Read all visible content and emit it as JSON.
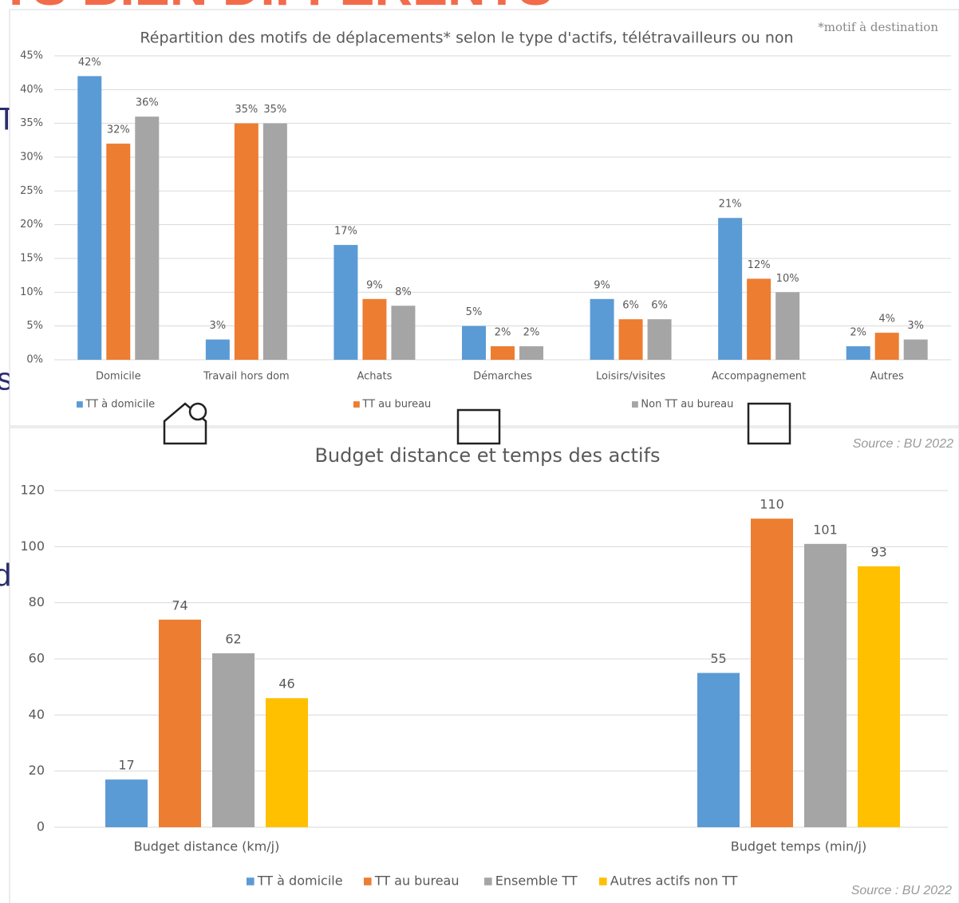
{
  "background": {
    "heading": "TS BIEN DIFFERENTS",
    "fragments": [
      "T",
      "s",
      "d"
    ]
  },
  "chart_data": [
    {
      "type": "bar",
      "title": "Répartition des motifs de déplacements* selon le type d'actifs, télétravailleurs ou non",
      "note": "*motif à destination",
      "source": "Source : BU 2022",
      "categories": [
        "Domicile",
        "Travail hors dom",
        "Achats",
        "Démarches",
        "Loisirs/visites",
        "Accompagnement",
        "Autres"
      ],
      "series": [
        {
          "name": "TT à domicile",
          "color": "#5b9bd5",
          "values": [
            42,
            3,
            17,
            5,
            9,
            21,
            2
          ],
          "value_labels": [
            "42%",
            "3%",
            "17%",
            "5%",
            "9%",
            "21%",
            "2%"
          ]
        },
        {
          "name": "TT au bureau",
          "color": "#ed7d31",
          "values": [
            32,
            35,
            9,
            2,
            6,
            12,
            4
          ],
          "value_labels": [
            "32%",
            "35%",
            "9%",
            "2%",
            "6%",
            "12%",
            "4%"
          ]
        },
        {
          "name": "Non TT au bureau",
          "color": "#a5a5a5",
          "values": [
            36,
            35,
            8,
            2,
            6,
            10,
            3
          ],
          "value_labels": [
            "36%",
            "35%",
            "8%",
            "2%",
            "6%",
            "10%",
            "3%"
          ]
        }
      ],
      "ylim": [
        0,
        45
      ],
      "yticks": [
        {
          "value": 0,
          "label": "0%"
        },
        {
          "value": 5,
          "label": "5%"
        },
        {
          "value": 10,
          "label": "10%"
        },
        {
          "value": 15,
          "label": "15%"
        },
        {
          "value": 20,
          "label": "20%"
        },
        {
          "value": 25,
          "label": "25%"
        },
        {
          "value": 30,
          "label": "30%"
        },
        {
          "value": 35,
          "label": "35%"
        },
        {
          "value": 40,
          "label": "40%"
        },
        {
          "value": 45,
          "label": "45%"
        }
      ],
      "grid": true,
      "legend": "bottom"
    },
    {
      "type": "bar",
      "title": "Budget distance et temps des actifs",
      "source": "Source : BU 2022",
      "categories": [
        "Budget distance (km/j)",
        "Budget temps (min/j)"
      ],
      "series": [
        {
          "name": "TT à domicile",
          "color": "#5b9bd5",
          "values": [
            17,
            55
          ]
        },
        {
          "name": "TT au bureau",
          "color": "#ed7d31",
          "values": [
            74,
            110
          ]
        },
        {
          "name": "Ensemble TT",
          "color": "#a5a5a5",
          "values": [
            62,
            101
          ]
        },
        {
          "name": "Autres actifs non TT",
          "color": "#ffc000",
          "values": [
            46,
            93
          ]
        }
      ],
      "ylim": [
        0,
        120
      ],
      "yticks": [
        0,
        20,
        40,
        60,
        80,
        100,
        120
      ],
      "grid": true,
      "legend": "bottom"
    }
  ]
}
